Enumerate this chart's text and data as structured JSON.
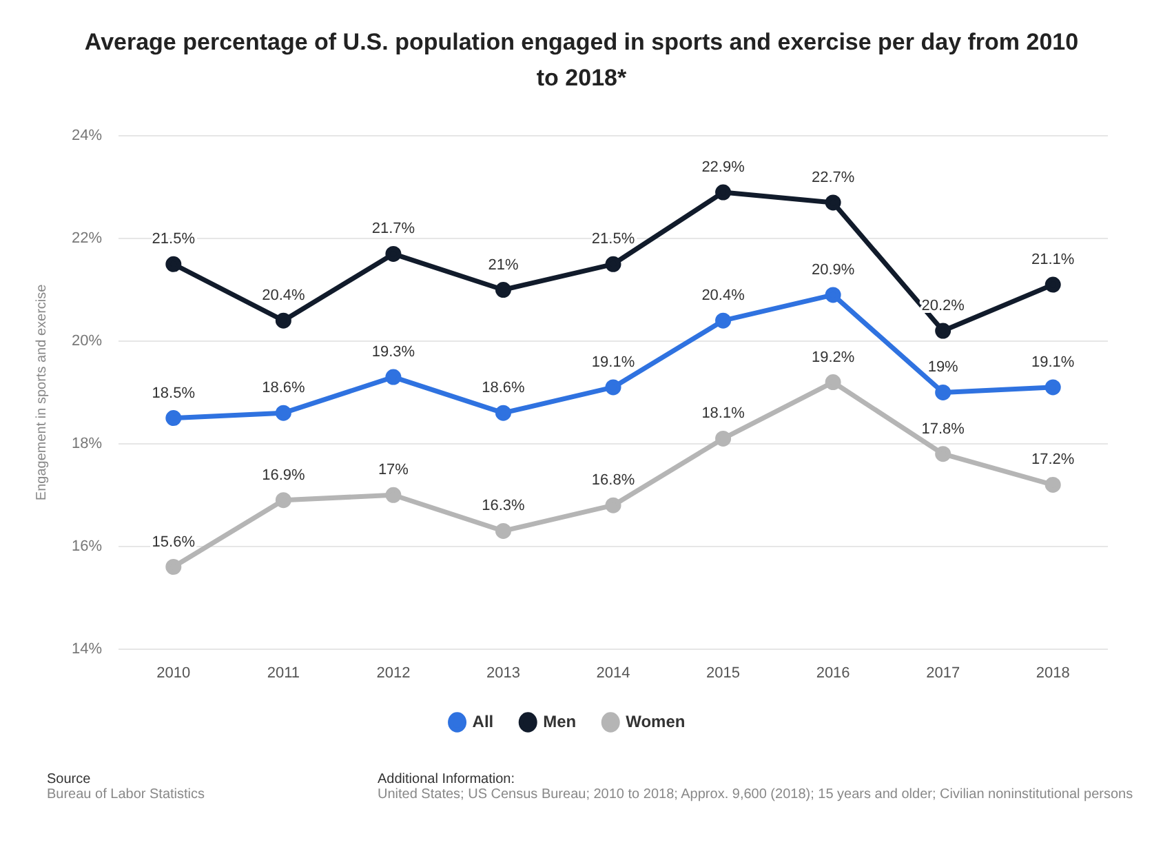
{
  "chart_data": {
    "type": "line",
    "title": "Average percentage of U.S. population engaged in sports and exercise per day from 2010 to 2018*",
    "ylabel": "Engagement in sports and exercise",
    "categories": [
      "2010",
      "2011",
      "2012",
      "2013",
      "2014",
      "2015",
      "2016",
      "2017",
      "2018"
    ],
    "series": [
      {
        "name": "All",
        "color": "#2f72e0",
        "values": [
          18.5,
          18.6,
          19.3,
          18.6,
          19.1,
          20.4,
          20.9,
          19,
          19.1
        ],
        "value_labels": [
          "18.5%",
          "18.6%",
          "19.3%",
          "18.6%",
          "19.1%",
          "20.4%",
          "20.9%",
          "19%",
          "19.1%"
        ]
      },
      {
        "name": "Men",
        "color": "#111b2b",
        "values": [
          21.5,
          20.4,
          21.7,
          21,
          21.5,
          22.9,
          22.7,
          20.2,
          21.1
        ],
        "value_labels": [
          "21.5%",
          "20.4%",
          "21.7%",
          "21%",
          "21.5%",
          "22.9%",
          "22.7%",
          "20.2%",
          "21.1%"
        ]
      },
      {
        "name": "Women",
        "color": "#b5b5b5",
        "values": [
          15.6,
          16.9,
          17,
          16.3,
          16.8,
          18.1,
          19.2,
          17.8,
          17.2
        ],
        "value_labels": [
          "15.6%",
          "16.9%",
          "17%",
          "16.3%",
          "16.8%",
          "18.1%",
          "19.2%",
          "17.8%",
          "17.2%"
        ]
      }
    ],
    "ylim": [
      14,
      24
    ],
    "yticks": [
      {
        "value": 14,
        "label": "14%"
      },
      {
        "value": 16,
        "label": "16%"
      },
      {
        "value": 18,
        "label": "18%"
      },
      {
        "value": 20,
        "label": "20%"
      },
      {
        "value": 22,
        "label": "22%"
      },
      {
        "value": 24,
        "label": "24%"
      }
    ],
    "grid": "y",
    "legend": "bottom",
    "marker": "circle",
    "line_style": "solid",
    "annotations": [
      "Source",
      "Bureau of Labor Statistics",
      "Additional Information:",
      "United States; US Census Bureau; 2010 to 2018; Approx. 9,600 (2018); 15 years and older; Civilian noninstitutional persons"
    ]
  }
}
